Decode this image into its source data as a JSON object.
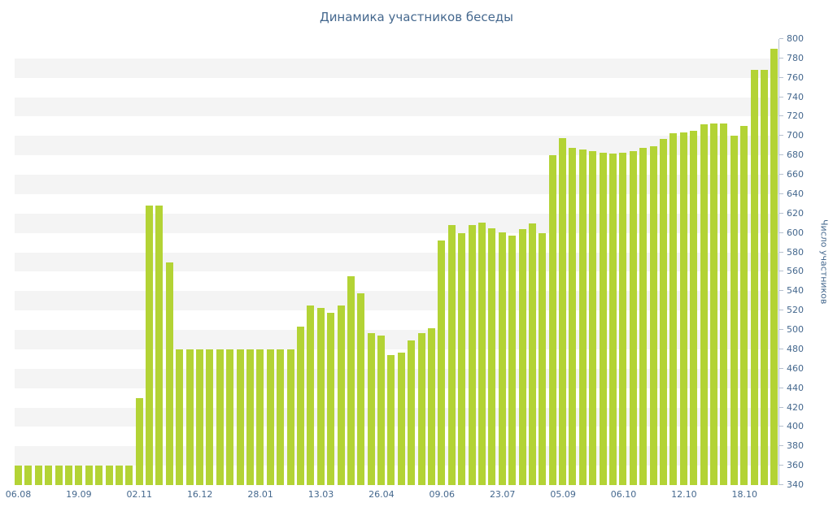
{
  "chart_data": {
    "type": "bar",
    "title": "Динамика участников беседы",
    "xlabel": "",
    "ylabel": "Число участников",
    "ylim": [
      340,
      800
    ],
    "y_tick_step": 20,
    "y_ticks": [
      340,
      360,
      380,
      400,
      420,
      440,
      460,
      480,
      500,
      520,
      540,
      560,
      580,
      600,
      620,
      640,
      660,
      680,
      700,
      720,
      740,
      760,
      780,
      800
    ],
    "grid": "alternating-horizontal-bands",
    "legend": "none",
    "x_tick_labels": [
      "06.08",
      "19.09",
      "02.11",
      "16.12",
      "28.01",
      "13.03",
      "26.04",
      "09.06",
      "23.07",
      "05.09",
      "06.10",
      "12.10",
      "18.10"
    ],
    "x_tick_positions": [
      0,
      6,
      12,
      18,
      24,
      30,
      36,
      42,
      48,
      54,
      60,
      66,
      72
    ],
    "values": [
      360,
      360,
      360,
      360,
      360,
      360,
      360,
      360,
      360,
      360,
      360,
      360,
      430,
      628,
      628,
      570,
      480,
      480,
      480,
      480,
      480,
      480,
      480,
      480,
      480,
      480,
      480,
      480,
      503,
      525,
      523,
      518,
      525,
      555,
      538,
      497,
      494,
      474,
      477,
      489,
      497,
      502,
      592,
      608,
      600,
      608,
      611,
      605,
      601,
      597,
      604,
      610,
      600,
      680,
      698,
      688,
      686,
      684,
      683,
      682,
      683,
      684,
      688,
      689,
      697,
      703,
      704,
      705,
      712,
      713,
      713,
      700,
      710,
      768,
      768,
      790
    ],
    "colors": {
      "bar": "#b3d335",
      "band": "#f4f4f4",
      "background": "#ffffff",
      "axis_line": "#b6c1cf",
      "axis_text": "#45688E",
      "title_text": "#45688E"
    }
  }
}
